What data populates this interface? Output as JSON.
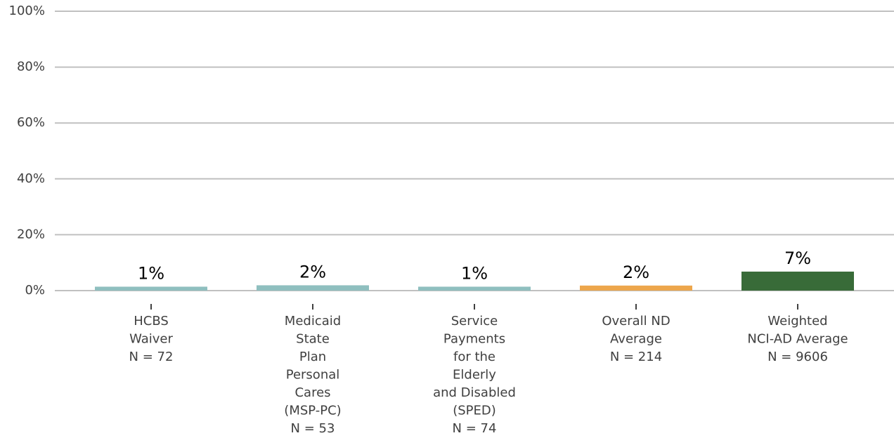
{
  "chart_data": {
    "type": "bar",
    "categories": [
      [
        "HCBS",
        "Waiver",
        "N = 72"
      ],
      [
        "Medicaid",
        "State",
        "Plan",
        "Personal",
        "Cares",
        "(MSP-PC)",
        "N = 53"
      ],
      [
        "Service",
        "Payments",
        "for the",
        "Elderly",
        "and Disabled",
        "(SPED)",
        "N = 74"
      ],
      [
        "Overall ND",
        "Average",
        "N = 214"
      ],
      [
        "Weighted",
        "NCI-AD Average",
        "N = 9606"
      ]
    ],
    "values": [
      1.4,
      1.9,
      1.4,
      1.8,
      6.8
    ],
    "value_labels": [
      "1%",
      "2%",
      "1%",
      "2%",
      "7%"
    ],
    "colors": [
      "#8fbfbf",
      "#8fbfbf",
      "#8fbfbf",
      "#eda64c",
      "#386b38"
    ],
    "ylim": [
      0,
      100
    ],
    "yticks": [
      {
        "value": 0,
        "label": "0%"
      },
      {
        "value": 20,
        "label": "20%"
      },
      {
        "value": 40,
        "label": "40%"
      },
      {
        "value": 60,
        "label": "60%"
      },
      {
        "value": 80,
        "label": "80%"
      },
      {
        "value": 100,
        "label": "100%"
      }
    ],
    "grid": true
  }
}
